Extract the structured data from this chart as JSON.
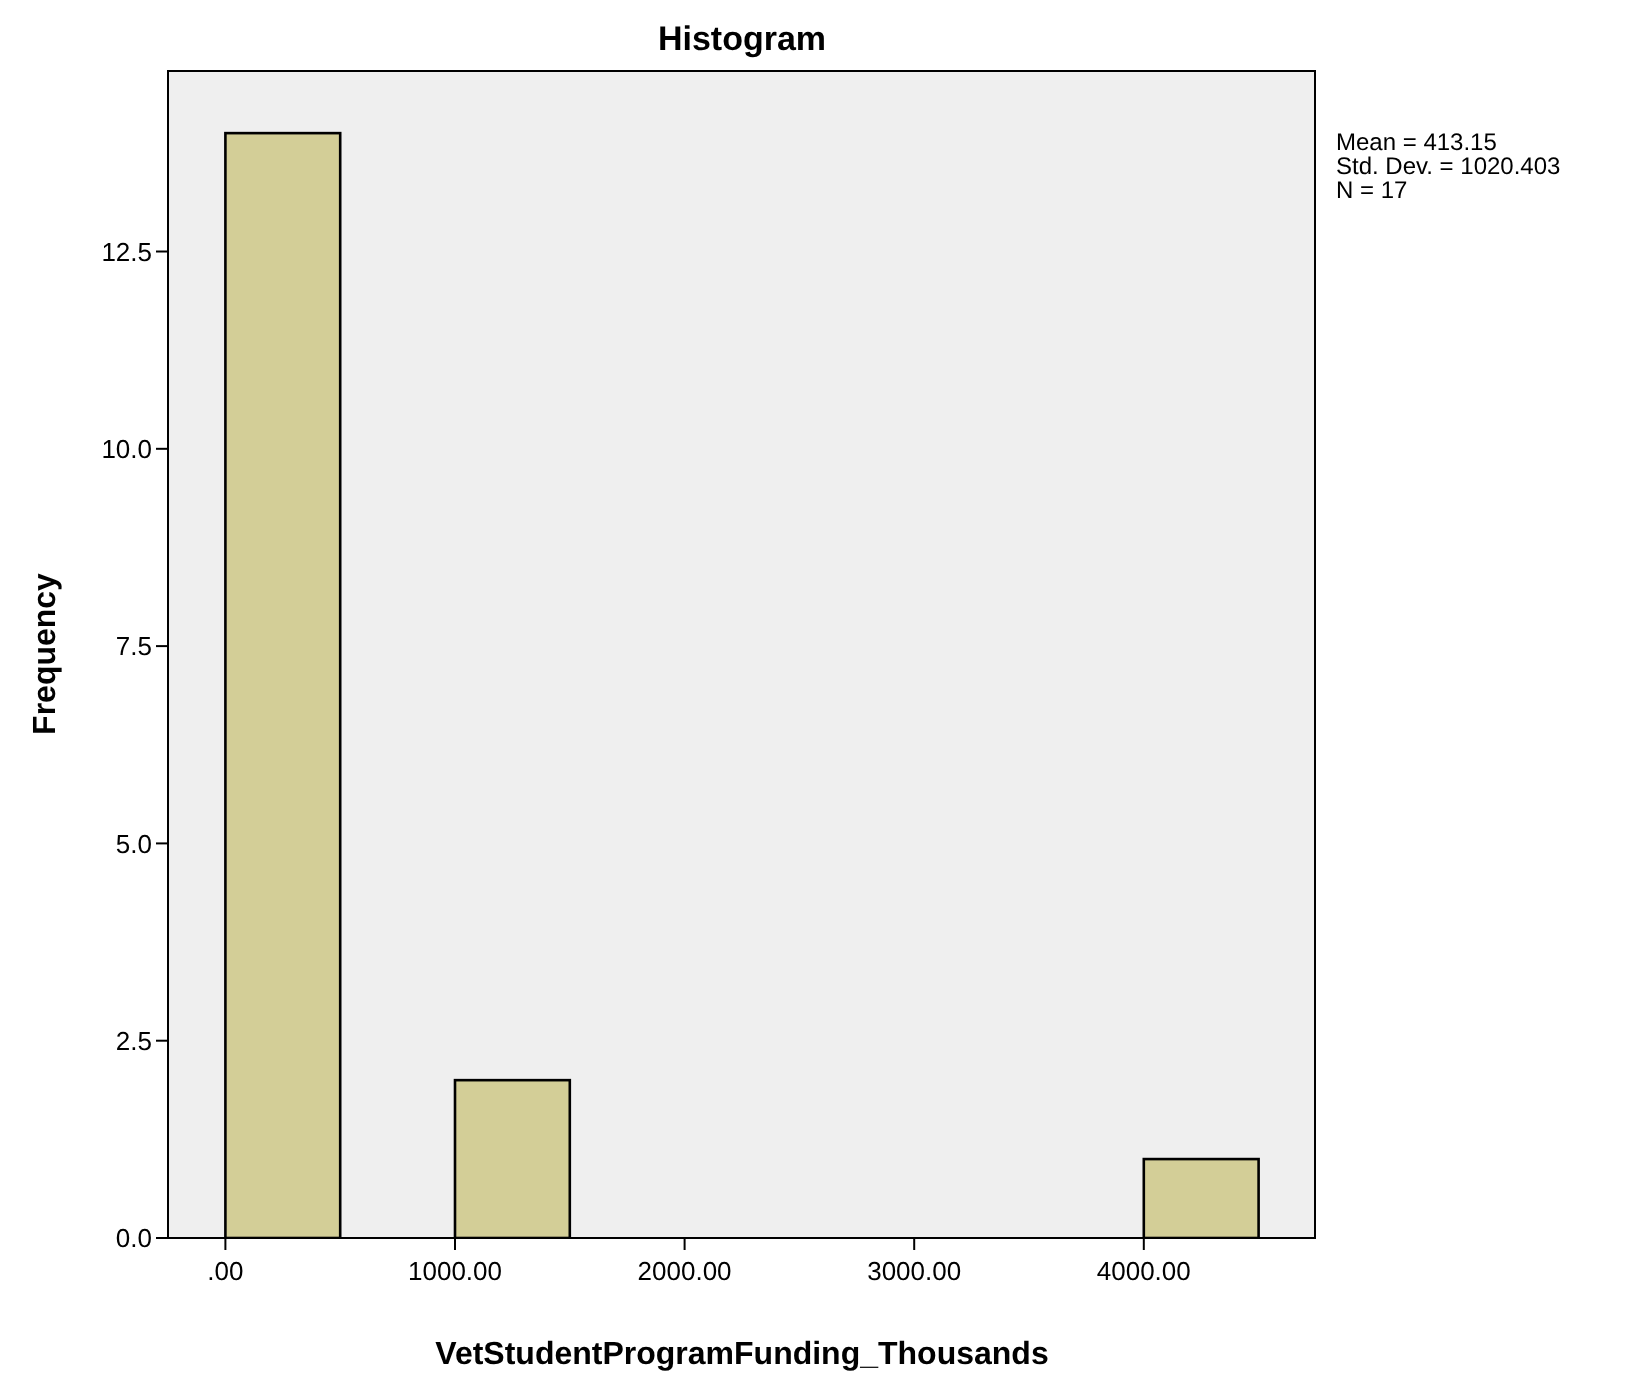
{
  "chart_data": {
    "type": "histogram",
    "title": "Histogram",
    "xlabel": "VetStudentProgramFunding_Thousands",
    "ylabel": "Frequency",
    "bins": [
      0,
      500,
      1000,
      1500,
      2000,
      2500,
      3000,
      3500,
      4000,
      4500
    ],
    "values": [
      14,
      0,
      2,
      0,
      0,
      0,
      0,
      0,
      1
    ],
    "color": "#d3ce97",
    "xlim": [
      -250,
      4750
    ],
    "xticks": [
      {
        "value": 0,
        "label": ".00"
      },
      {
        "value": 1000,
        "label": "1000.00"
      },
      {
        "value": 2000,
        "label": "2000.00"
      },
      {
        "value": 3000,
        "label": "3000.00"
      },
      {
        "value": 4000,
        "label": "4000.00"
      }
    ],
    "ylim": [
      0,
      14.8
    ],
    "yticks": [
      {
        "value": 0,
        "label": "0.0"
      },
      {
        "value": 2.5,
        "label": "2.5"
      },
      {
        "value": 5,
        "label": "5.0"
      },
      {
        "value": 7.5,
        "label": "7.5"
      },
      {
        "value": 10,
        "label": "10.0"
      },
      {
        "value": 12.5,
        "label": "12.5"
      }
    ],
    "annotations": [
      "Mean = 413.15",
      "Std. Dev. = 1020.403",
      "N = 17"
    ],
    "grid": false,
    "legend": false
  }
}
